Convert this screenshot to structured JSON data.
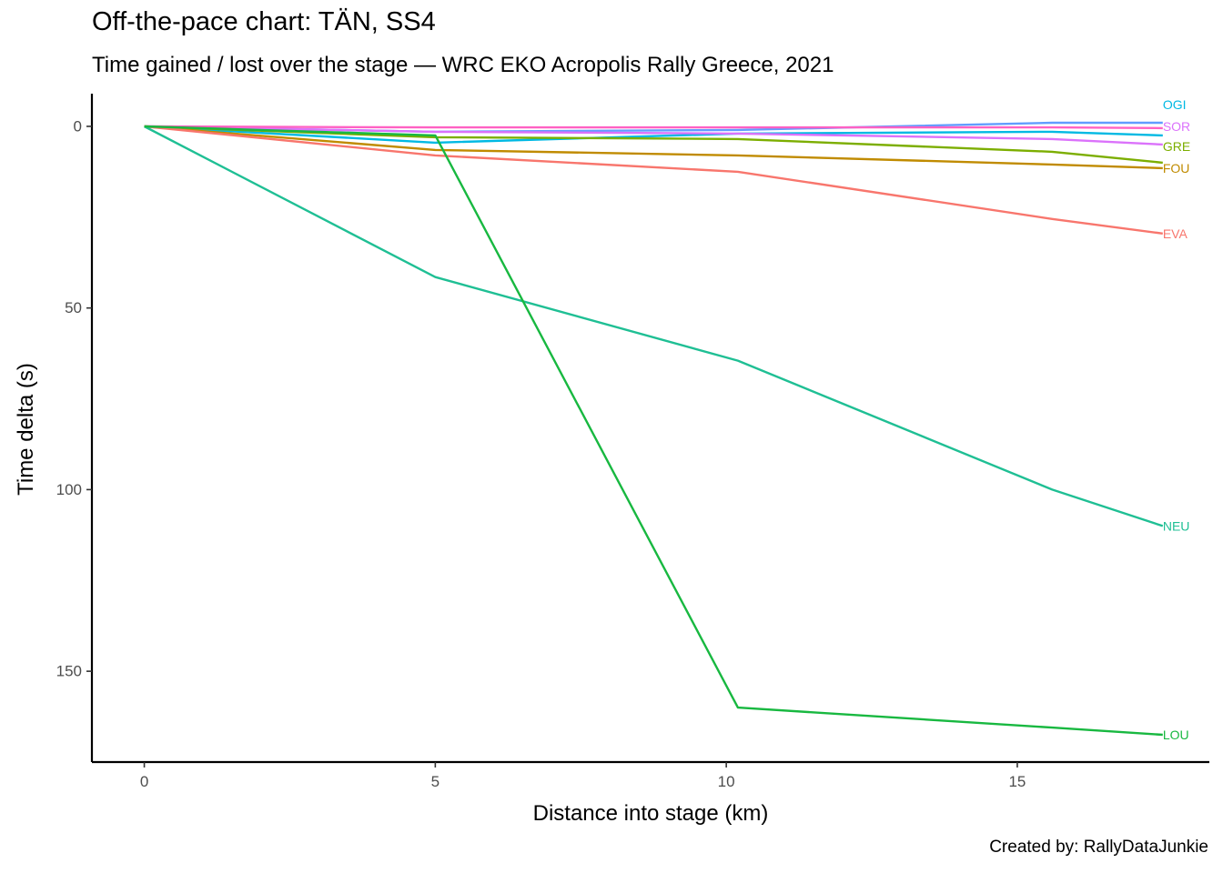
{
  "chart_data": {
    "type": "line",
    "title": "Off-the-pace chart: TÄN, SS4",
    "subtitle": "Time gained / lost over the stage — WRC EKO Acropolis Rally Greece, 2021",
    "caption": "Created by: RallyDataJunkie",
    "xlabel": "Distance into stage (km)",
    "ylabel": "Time delta (s)",
    "xlim": [
      -0.9,
      18.3
    ],
    "ylim": [
      -9,
      175
    ],
    "y_reversed": true,
    "grid": false,
    "legend": "none",
    "x_ticks": [
      0,
      5,
      10,
      15
    ],
    "y_ticks": [
      0,
      50,
      100,
      150
    ],
    "x": [
      0,
      5,
      10.2,
      15.6,
      17.5
    ],
    "series": [
      {
        "name": "OGI",
        "color": "#00b9e3",
        "values": [
          0,
          4.5,
          2,
          1.5,
          2.5
        ]
      },
      {
        "name": "",
        "color": "#619cff",
        "values": [
          0,
          1.5,
          1,
          -1,
          -1
        ]
      },
      {
        "name": "SOR",
        "color": "#db72fb",
        "values": [
          0,
          1.5,
          2,
          3.5,
          5
        ]
      },
      {
        "name": "",
        "color": "#ff61c3",
        "values": [
          0,
          0.3,
          0.3,
          0.3,
          0.5
        ]
      },
      {
        "name": "GRE",
        "color": "#7cae00",
        "values": [
          0,
          3,
          3.5,
          7,
          10
        ]
      },
      {
        "name": "FOU",
        "color": "#c08b00",
        "values": [
          0,
          6.5,
          8,
          10.5,
          11.5
        ]
      },
      {
        "name": "EVA",
        "color": "#f8766d",
        "values": [
          0,
          8,
          12.5,
          25.5,
          29.5
        ]
      },
      {
        "name": "NEU",
        "color": "#1fbf94",
        "values": [
          0,
          41.5,
          64.5,
          100,
          110
        ]
      },
      {
        "name": "LOU",
        "color": "#18b840",
        "values": [
          0,
          2.5,
          160,
          165.5,
          167.5
        ]
      }
    ],
    "end_labels": [
      {
        "text": "OGI",
        "color": "#00b9e3",
        "at": -6
      },
      {
        "text": "SOR",
        "color": "#db72fb",
        "at": 0
      },
      {
        "text": "GRE",
        "color": "#7cae00",
        "at": 5.5
      },
      {
        "text": "FOU",
        "color": "#c08b00",
        "at": 11.5
      },
      {
        "text": "EVA",
        "color": "#f8766d",
        "at": 29.5
      },
      {
        "text": "NEU",
        "color": "#1fbf94",
        "at": 110
      },
      {
        "text": "LOU",
        "color": "#18b840",
        "at": 167.5
      }
    ]
  }
}
